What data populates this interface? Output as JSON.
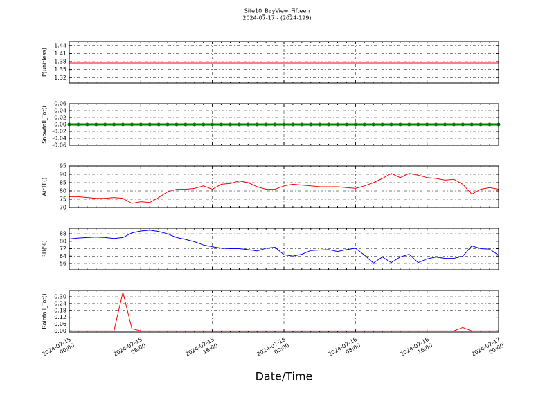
{
  "chart_data": {
    "type": "line",
    "title": "Site10_BayView_Fifteen",
    "subtitle": "2024-07-17 - (2024-199)",
    "xlabel": "Date/Time",
    "xlim": [
      "2024-07-15 00:00",
      "2024-07-17 00:00"
    ],
    "xticks": [
      {
        "value": "2024-07-15 00:00",
        "label": "2024-07-15\n00:00"
      },
      {
        "value": "2024-07-15 08:00",
        "label": "2024-07-15\n08:00"
      },
      {
        "value": "2024-07-15 16:00",
        "label": "2024-07-15\n16:00"
      },
      {
        "value": "2024-07-16 00:00",
        "label": "2024-07-16\n00:00"
      },
      {
        "value": "2024-07-16 08:00",
        "label": "2024-07-16\n08:00"
      },
      {
        "value": "2024-07-16 16:00",
        "label": "2024-07-16\n16:00"
      },
      {
        "value": "2024-07-17 00:00",
        "label": "2024-07-17\n00:00"
      }
    ],
    "grid": true,
    "x": [
      "2024-07-15 00:00",
      "2024-07-15 01:00",
      "2024-07-15 02:00",
      "2024-07-15 03:00",
      "2024-07-15 04:00",
      "2024-07-15 05:00",
      "2024-07-15 06:00",
      "2024-07-15 07:00",
      "2024-07-15 08:00",
      "2024-07-15 09:00",
      "2024-07-15 10:00",
      "2024-07-15 11:00",
      "2024-07-15 12:00",
      "2024-07-15 13:00",
      "2024-07-15 14:00",
      "2024-07-15 15:00",
      "2024-07-15 16:00",
      "2024-07-15 17:00",
      "2024-07-15 18:00",
      "2024-07-15 19:00",
      "2024-07-15 20:00",
      "2024-07-15 21:00",
      "2024-07-15 22:00",
      "2024-07-15 23:00",
      "2024-07-16 00:00",
      "2024-07-16 01:00",
      "2024-07-16 02:00",
      "2024-07-16 03:00",
      "2024-07-16 04:00",
      "2024-07-16 05:00",
      "2024-07-16 06:00",
      "2024-07-16 07:00",
      "2024-07-16 08:00",
      "2024-07-16 09:00",
      "2024-07-16 10:00",
      "2024-07-16 11:00",
      "2024-07-16 12:00",
      "2024-07-16 13:00",
      "2024-07-16 14:00",
      "2024-07-16 15:00",
      "2024-07-16 16:00",
      "2024-07-16 17:00",
      "2024-07-16 18:00",
      "2024-07-16 19:00",
      "2024-07-16 20:00",
      "2024-07-16 21:00",
      "2024-07-16 22:00",
      "2024-07-16 23:00",
      "2024-07-17 00:00"
    ],
    "panels": [
      {
        "ylabel": "P(unitless)",
        "color": "#ff0000",
        "ylim": [
          1.3,
          1.455
        ],
        "yticks": [
          1.32,
          1.35,
          1.38,
          1.41,
          1.44
        ],
        "values": [
          1.375,
          1.375,
          1.375,
          1.375,
          1.375,
          1.375,
          1.375,
          1.375,
          1.375,
          1.375,
          1.375,
          1.375,
          1.375,
          1.375,
          1.375,
          1.375,
          1.375,
          1.375,
          1.375,
          1.375,
          1.375,
          1.375,
          1.375,
          1.375,
          1.375,
          1.375,
          1.375,
          1.375,
          1.375,
          1.375,
          1.375,
          1.375,
          1.375,
          1.375,
          1.375,
          1.375,
          1.375,
          1.375,
          1.375,
          1.375,
          1.375,
          1.375,
          1.375,
          1.375,
          1.375,
          1.375,
          1.375,
          1.375,
          1.375
        ]
      },
      {
        "ylabel": "Snowfall_Tot()",
        "color": "#008000",
        "markers": true,
        "ylim": [
          -0.06,
          0.06
        ],
        "yticks": [
          -0.06,
          -0.04,
          -0.02,
          {
            "value": 0,
            "label": "0.00"
          },
          0.02,
          0.04,
          0.06
        ],
        "values": [
          0,
          0,
          0,
          0,
          0,
          0,
          0,
          0,
          0,
          0,
          0,
          0,
          0,
          0,
          0,
          0,
          0,
          0,
          0,
          0,
          0,
          0,
          0,
          0,
          0,
          0,
          0,
          0,
          0,
          0,
          0,
          0,
          0,
          0,
          0,
          0,
          0,
          0,
          0,
          0,
          0,
          0,
          0,
          0,
          0,
          0,
          0,
          0,
          0
        ]
      },
      {
        "ylabel": "AirTF()",
        "color": "#ff0000",
        "ylim": [
          70,
          95
        ],
        "yticks": [
          70,
          75,
          80,
          85,
          90,
          95
        ],
        "values": [
          76.5,
          76.5,
          76,
          75.5,
          75.5,
          76,
          75.5,
          72.5,
          73.5,
          73,
          76,
          79.5,
          81,
          81,
          81.5,
          83,
          81,
          84,
          84.5,
          86,
          85,
          82.5,
          81,
          81,
          83,
          84,
          83.5,
          83,
          82.5,
          82.5,
          82.5,
          82,
          81.5,
          83,
          85,
          87.5,
          90.5,
          88,
          90.5,
          89.5,
          88,
          87.5,
          86.5,
          87,
          84,
          78,
          81,
          82,
          81
        ]
      },
      {
        "ylabel": "RH(%)",
        "color": "#0000ff",
        "ylim": [
          49.3,
          94
        ],
        "yticks": [
          56,
          64,
          72,
          80,
          88
        ],
        "values": [
          82.5,
          83.5,
          84,
          84.5,
          84,
          83,
          84,
          89,
          91,
          92,
          90.5,
          88,
          84,
          82,
          79.5,
          76,
          74,
          72.5,
          72,
          72,
          71,
          69.5,
          72.5,
          73.5,
          65.5,
          64,
          66,
          70,
          70.5,
          71,
          69,
          71,
          72.5,
          65,
          56.5,
          63,
          57,
          63,
          66,
          57,
          61,
          63,
          61.5,
          61.5,
          64,
          75,
          72,
          71.5,
          65
        ]
      },
      {
        "ylabel": "Rainfall_Tot()",
        "color": "#ff0000",
        "ylim": [
          -0.01,
          0.355
        ],
        "yticks": [
          {
            "value": 0,
            "label": "0.00"
          },
          0.06,
          0.12,
          0.18,
          0.24,
          {
            "value": 0.3,
            "label": "0.30"
          }
        ],
        "values": [
          0,
          0,
          0,
          0,
          0,
          0,
          0.34,
          0.02,
          0,
          0,
          0,
          0,
          0,
          0,
          0,
          0,
          0,
          0,
          0,
          0,
          0,
          0,
          0,
          0,
          0,
          0,
          0,
          0,
          0,
          0,
          0,
          0,
          0,
          0,
          0,
          0,
          0,
          0,
          0,
          0,
          0,
          0,
          0,
          0,
          0.03,
          0,
          0,
          0,
          0
        ]
      }
    ]
  }
}
